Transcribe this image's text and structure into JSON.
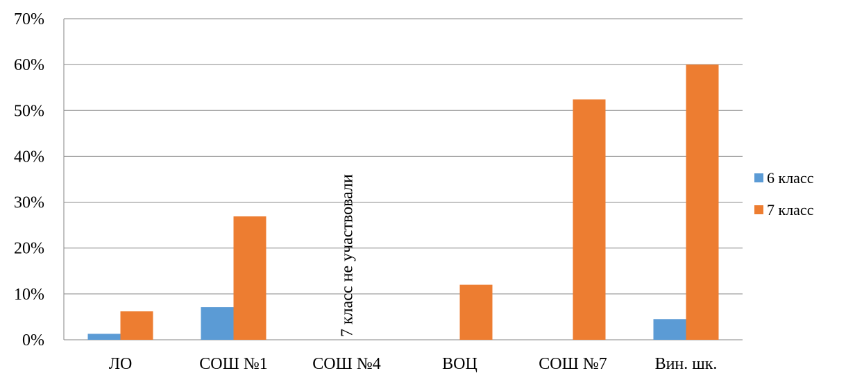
{
  "chart_data": {
    "type": "bar",
    "categories": [
      "ЛО",
      "СОШ №1",
      "СОШ №4",
      "ВОЦ",
      "СОШ №7",
      "Вин. шк."
    ],
    "series": [
      {
        "name": "6 класс",
        "values": [
          1.3,
          7.1,
          null,
          null,
          null,
          4.5
        ],
        "color": "#5b9bd5"
      },
      {
        "name": "7 класс",
        "values": [
          6.2,
          26.9,
          null,
          12.0,
          52.4,
          60.0
        ],
        "color": "#ed7d31"
      }
    ],
    "ylim": [
      0,
      70
    ],
    "y_ticks": [
      0,
      10,
      20,
      30,
      40,
      50,
      60,
      70
    ],
    "y_tick_suffix": "%",
    "grid": true,
    "legend_position": "right",
    "annotations": [
      {
        "text": "7 класс не участвовали",
        "category": "СОШ №4"
      }
    ],
    "title": "",
    "xlabel": "",
    "ylabel": ""
  }
}
